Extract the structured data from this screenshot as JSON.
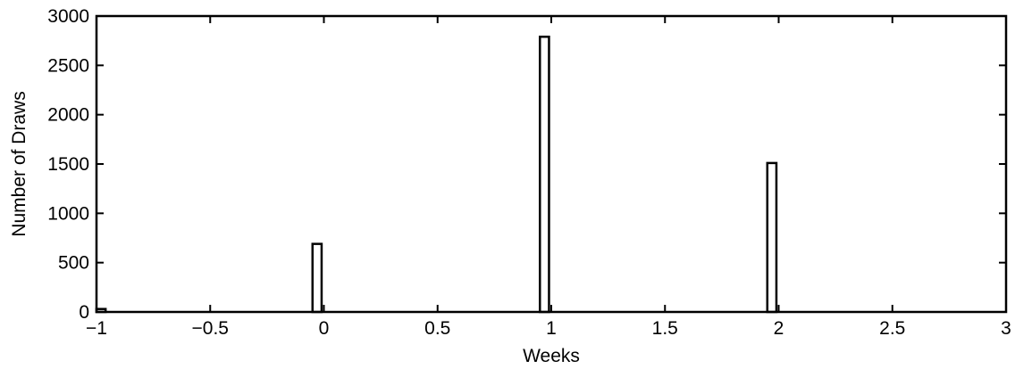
{
  "chart_data": {
    "type": "bar",
    "title": "",
    "xlabel": "Weeks",
    "ylabel": "Number of Draws",
    "xlim": [
      -1,
      3
    ],
    "ylim": [
      0,
      3000
    ],
    "xticks": [
      -1,
      -0.5,
      0,
      0.5,
      1,
      1.5,
      2,
      2.5,
      3
    ],
    "xtick_labels": [
      "−1",
      "−0.5",
      "0",
      "0.5",
      "1",
      "1.5",
      "2",
      "2.5",
      "3"
    ],
    "yticks": [
      0,
      500,
      1000,
      1500,
      2000,
      2500,
      3000
    ],
    "ytick_labels": [
      "0",
      "500",
      "1000",
      "1500",
      "2000",
      "2500",
      "3000"
    ],
    "grid": false,
    "bar_width": 0.04,
    "bars": [
      {
        "x": -0.98,
        "value": 30
      },
      {
        "x": -0.03,
        "value": 690
      },
      {
        "x": 0.97,
        "value": 2790
      },
      {
        "x": 1.97,
        "value": 1510
      }
    ],
    "colors": {
      "bar_fill": "#ffffff",
      "bar_stroke": "#000000",
      "axis": "#000000"
    }
  }
}
